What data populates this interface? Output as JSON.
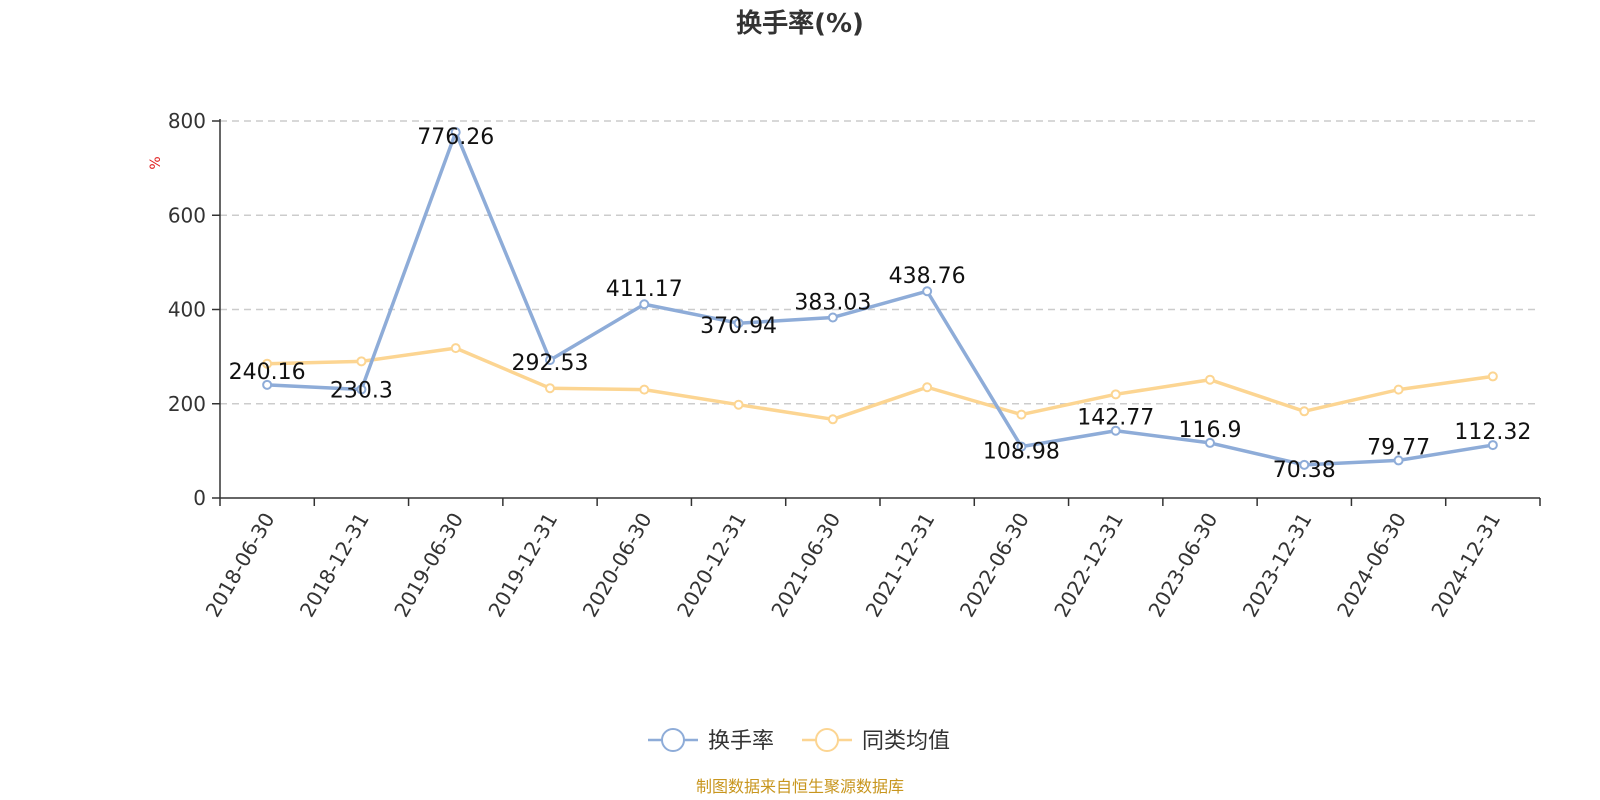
{
  "chart_data": {
    "type": "line",
    "title": "换手率(%)",
    "ylabel": "%",
    "ylim": [
      0,
      800
    ],
    "yticks": [
      0,
      200,
      400,
      600,
      800
    ],
    "grid": true,
    "legend_position": "bottom-center",
    "categories": [
      "2018-06-30",
      "2018-12-31",
      "2019-06-30",
      "2019-12-31",
      "2020-06-30",
      "2020-12-31",
      "2021-06-30",
      "2021-12-31",
      "2022-06-30",
      "2022-12-31",
      "2023-06-30",
      "2023-12-31",
      "2024-06-30",
      "2024-12-31"
    ],
    "series": [
      {
        "name": "换手率",
        "color": "#8eacd8",
        "values": [
          240.16,
          230.3,
          776.26,
          292.53,
          411.17,
          370.94,
          383.03,
          438.76,
          108.98,
          142.77,
          116.9,
          70.38,
          79.77,
          112.32
        ],
        "labels": [
          "240.16",
          "230.3",
          "776.26",
          "292.53",
          "411.17",
          "370.94",
          "383.03",
          "438.76",
          "108.98",
          "142.77",
          "116.9",
          "70.38",
          "79.77",
          "112.32"
        ]
      },
      {
        "name": "同类均值",
        "color": "#fcd592",
        "values": [
          285,
          290,
          318,
          233,
          230,
          198,
          167,
          235,
          177,
          220,
          251,
          184,
          230,
          258
        ]
      }
    ],
    "source": "制图数据来自恒生聚源数据库"
  }
}
